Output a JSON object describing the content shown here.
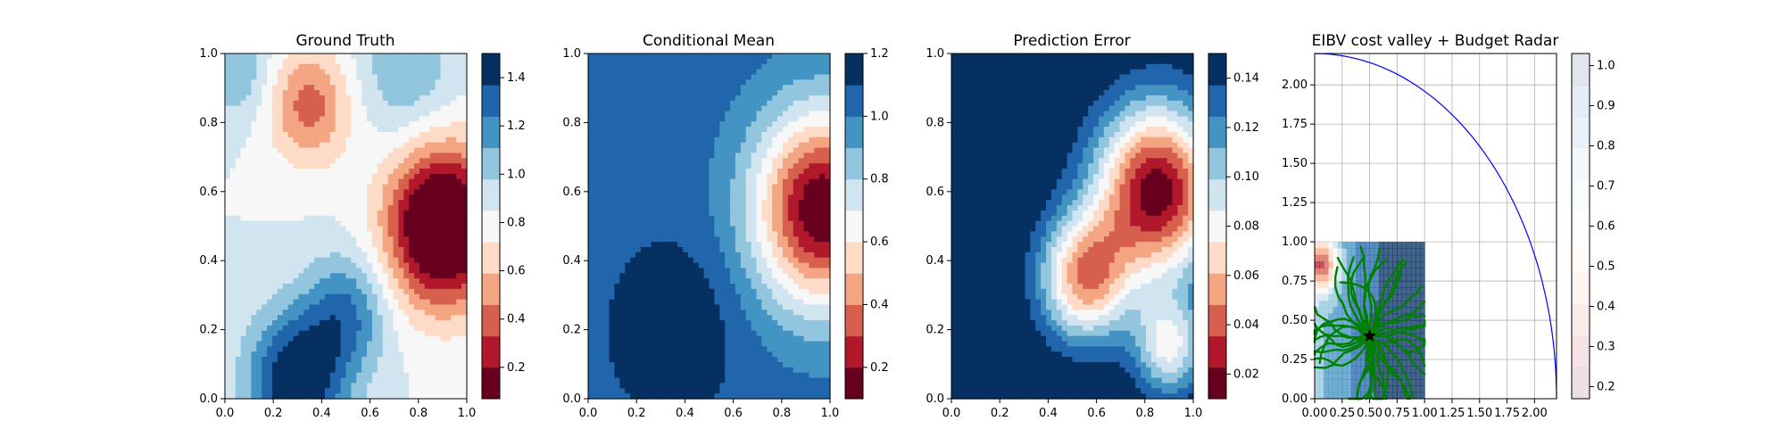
{
  "colors": {
    "rdbu": [
      "#67001f",
      "#b2182b",
      "#d6604d",
      "#f4a582",
      "#fddbc7",
      "#f7f7f7",
      "#d1e5f0",
      "#92c5de",
      "#4393c3",
      "#2166ac",
      "#053061"
    ],
    "path": "#008000",
    "circle": "#0000ff",
    "grid": "#b0b0b0"
  },
  "chart_data": [
    {
      "type": "heatmap",
      "title": "Ground Truth",
      "xlabel": "",
      "ylabel": "",
      "xlim": [
        0,
        1
      ],
      "ylim": [
        0,
        1
      ],
      "xticks": [
        "0.0",
        "0.2",
        "0.4",
        "0.6",
        "0.8",
        "1.0"
      ],
      "yticks": [
        "0.0",
        "0.2",
        "0.4",
        "0.6",
        "0.8",
        "1.0"
      ],
      "levels": [
        0.0,
        0.1,
        0.2,
        0.3,
        0.4,
        0.5,
        0.6,
        0.7,
        0.8,
        0.9,
        1.0,
        1.1,
        1.2,
        1.3,
        1.4,
        1.5
      ],
      "colorbar": {
        "ticks": [
          "0.2",
          "0.4",
          "0.6",
          "0.8",
          "1.0",
          "1.2",
          "1.4"
        ],
        "tick_values": [
          0.2,
          0.4,
          0.6,
          0.8,
          1.0,
          1.2,
          1.4
        ],
        "range": [
          0.07,
          1.5
        ]
      },
      "features": [
        {
          "x": 0.9,
          "y": 0.5,
          "amp": -1.05,
          "s": 0.16
        },
        {
          "x": 0.3,
          "y": 0.05,
          "amp": 0.7,
          "s": 0.14
        },
        {
          "x": 0.5,
          "y": 0.25,
          "amp": 0.4,
          "s": 0.12
        },
        {
          "x": 0.35,
          "y": 0.85,
          "amp": -0.45,
          "s": 0.12
        },
        {
          "x": 0.05,
          "y": 0.95,
          "amp": 0.25,
          "s": 0.1
        },
        {
          "x": 0.75,
          "y": 0.95,
          "amp": 0.25,
          "s": 0.14
        }
      ],
      "base": 0.85
    },
    {
      "type": "heatmap",
      "title": "Conditional Mean",
      "xlabel": "",
      "ylabel": "",
      "xlim": [
        0,
        1
      ],
      "ylim": [
        0,
        1
      ],
      "xticks": [
        "0.0",
        "0.2",
        "0.4",
        "0.6",
        "0.8",
        "1.0"
      ],
      "yticks": [
        "0.0",
        "0.2",
        "0.4",
        "0.6",
        "0.8",
        "1.0"
      ],
      "colorbar": {
        "ticks": [
          "0.2",
          "0.4",
          "0.6",
          "0.8",
          "1.0",
          "1.2"
        ],
        "tick_values": [
          0.2,
          0.4,
          0.6,
          0.8,
          1.0,
          1.2
        ],
        "range": [
          0.1,
          1.2
        ]
      },
      "features": [
        {
          "x": 0.97,
          "y": 0.55,
          "amp": -0.95,
          "s": 0.2
        },
        {
          "x": 0.35,
          "y": 0.2,
          "amp": 0.15,
          "s": 0.18
        }
      ],
      "base": 1.05
    },
    {
      "type": "heatmap",
      "title": "Prediction Error",
      "xlabel": "",
      "ylabel": "",
      "xlim": [
        0,
        1
      ],
      "ylim": [
        0,
        1
      ],
      "xticks": [
        "0.0",
        "0.2",
        "0.4",
        "0.6",
        "0.8",
        "1.0"
      ],
      "yticks": [
        "0.0",
        "0.2",
        "0.4",
        "0.6",
        "0.8",
        "1.0"
      ],
      "colorbar": {
        "ticks": [
          "0.02",
          "0.04",
          "0.06",
          "0.08",
          "0.10",
          "0.12",
          "0.14"
        ],
        "tick_values": [
          0.02,
          0.04,
          0.06,
          0.08,
          0.1,
          0.12,
          0.14
        ],
        "range": [
          0.01,
          0.15
        ]
      },
      "features": [
        {
          "x": 0.85,
          "y": 0.6,
          "amp": -0.14,
          "s": 0.18
        },
        {
          "x": 0.55,
          "y": 0.35,
          "amp": -0.1,
          "s": 0.13
        },
        {
          "x": 0.9,
          "y": 0.15,
          "amp": -0.07,
          "s": 0.1
        }
      ],
      "base": 0.155
    },
    {
      "type": "scatter",
      "title": "EIBV cost valley + Budget Radar",
      "xlabel": "",
      "ylabel": "",
      "xlim": [
        0,
        2.2
      ],
      "ylim": [
        0,
        2.2
      ],
      "xticks": [
        "0.00",
        "0.25",
        "0.50",
        "0.75",
        "1.00",
        "1.25",
        "1.50",
        "1.75",
        "2.00"
      ],
      "xtick_values": [
        0,
        0.25,
        0.5,
        0.75,
        1.0,
        1.25,
        1.5,
        1.75,
        2.0
      ],
      "yticks": [
        "0.00",
        "0.25",
        "0.50",
        "0.75",
        "1.00",
        "1.25",
        "1.50",
        "1.75",
        "2.00"
      ],
      "ytick_values": [
        0,
        0.25,
        0.5,
        0.75,
        1.0,
        1.25,
        1.5,
        1.75,
        2.0
      ],
      "grid": true,
      "budget_radius": 2.2,
      "budget_center": [
        0,
        0
      ],
      "current_location": [
        0.5,
        0.4
      ],
      "colorbar": {
        "ticks": [
          "0.2",
          "0.3",
          "0.4",
          "0.5",
          "0.6",
          "0.7",
          "0.8",
          "0.9",
          "1.0"
        ],
        "tick_values": [
          0.2,
          0.3,
          0.4,
          0.5,
          0.6,
          0.7,
          0.8,
          0.9,
          1.0
        ],
        "range": [
          0.17,
          1.03
        ]
      }
    }
  ]
}
